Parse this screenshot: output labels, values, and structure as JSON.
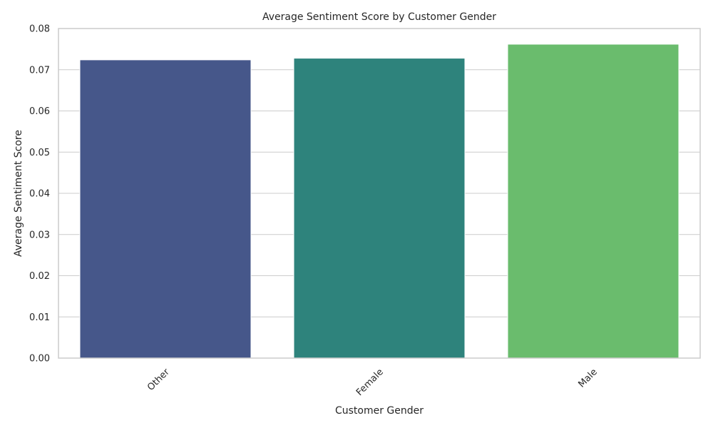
{
  "chart_data": {
    "type": "bar",
    "title": "Average Sentiment Score by Customer Gender",
    "xlabel": "Customer Gender",
    "ylabel": "Average Sentiment Score",
    "categories": [
      "Other",
      "Female",
      "Male"
    ],
    "values": [
      0.0724,
      0.0728,
      0.0762
    ],
    "colors": [
      "#46578a",
      "#2e837c",
      "#6abc6d"
    ],
    "ylim": [
      0,
      0.08
    ],
    "yticks": [
      0.0,
      0.01,
      0.02,
      0.03,
      0.04,
      0.05,
      0.06,
      0.07,
      0.08
    ],
    "ytick_labels": [
      "0.00",
      "0.01",
      "0.02",
      "0.03",
      "0.04",
      "0.05",
      "0.06",
      "0.07",
      "0.08"
    ],
    "grid": "horizontal",
    "xtick_rotation_deg": 45
  }
}
